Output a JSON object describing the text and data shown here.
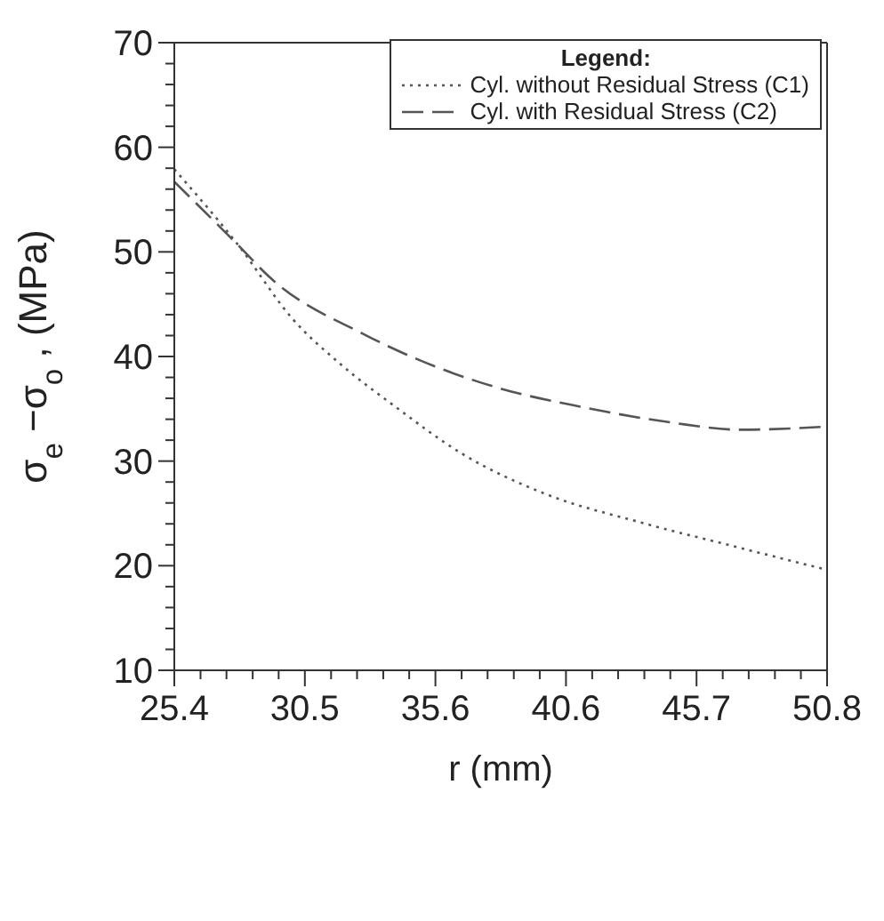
{
  "chart_data": {
    "type": "line",
    "xlabel": "r (mm)",
    "ylabel": "σ$_{e}$−σ$_{o}$ , (MPa)",
    "legend_title": "Legend:",
    "legend": "top right",
    "marker": "none",
    "xlim": [
      25.4,
      50.8
    ],
    "xticks": [
      25.4,
      {
        "value": 26.42,
        "label": null
      },
      {
        "value": 27.43,
        "label": null
      },
      {
        "value": 28.45,
        "label": null
      },
      {
        "value": 29.46,
        "label": null
      },
      {
        "value": 30.48,
        "label": "30.5"
      },
      {
        "value": 31.5,
        "label": null
      },
      {
        "value": 32.51,
        "label": null
      },
      {
        "value": 33.53,
        "label": null
      },
      {
        "value": 34.54,
        "label": null
      },
      {
        "value": 35.56,
        "label": "35.6"
      },
      {
        "value": 36.58,
        "label": null
      },
      {
        "value": 37.59,
        "label": null
      },
      {
        "value": 38.61,
        "label": null
      },
      {
        "value": 39.62,
        "label": null
      },
      {
        "value": 40.64,
        "label": "40.6"
      },
      {
        "value": 41.66,
        "label": null
      },
      {
        "value": 42.67,
        "label": null
      },
      {
        "value": 43.69,
        "label": null
      },
      {
        "value": 44.7,
        "label": null
      },
      {
        "value": 45.72,
        "label": "45.7"
      },
      {
        "value": 46.74,
        "label": null
      },
      {
        "value": 47.75,
        "label": null
      },
      {
        "value": 48.77,
        "label": null
      },
      {
        "value": 49.78,
        "label": null
      },
      50.8
    ],
    "ylim": [
      10,
      70
    ],
    "yticks": [
      10,
      {
        "value": 12,
        "label": null
      },
      {
        "value": 14,
        "label": null
      },
      {
        "value": 16,
        "label": null
      },
      {
        "value": 18,
        "label": null
      },
      20,
      {
        "value": 22,
        "label": null
      },
      {
        "value": 24,
        "label": null
      },
      {
        "value": 26,
        "label": null
      },
      {
        "value": 28,
        "label": null
      },
      30,
      {
        "value": 32,
        "label": null
      },
      {
        "value": 34,
        "label": null
      },
      {
        "value": 36,
        "label": null
      },
      {
        "value": 38,
        "label": null
      },
      40,
      {
        "value": 42,
        "label": null
      },
      {
        "value": 44,
        "label": null
      },
      {
        "value": 46,
        "label": null
      },
      {
        "value": 48,
        "label": null
      },
      50,
      {
        "value": 52,
        "label": null
      },
      {
        "value": 54,
        "label": null
      },
      {
        "value": 56,
        "label": null
      },
      {
        "value": 58,
        "label": null
      },
      60,
      {
        "value": 62,
        "label": null
      },
      {
        "value": 64,
        "label": null
      },
      {
        "value": 66,
        "label": null
      },
      {
        "value": 68,
        "label": null
      },
      70
    ],
    "series": [
      {
        "name": "Cyl. without Residual Stress (C1)",
        "color": "#555555",
        "line_style": "dotted",
        "x": [
          25.4,
          27.9,
          30.0,
          31.9,
          34.0,
          36.6,
          39.8,
          43.6,
          47.1,
          50.8
        ],
        "values": [
          57.9,
          50.6,
          43.6,
          39.2,
          35.2,
          30.7,
          26.9,
          24.1,
          21.9,
          19.6
        ]
      },
      {
        "name": "Cyl. with Residual Stress (C2)",
        "color": "#555555",
        "line_style": "dashed",
        "x": [
          25.4,
          27.9,
          29.1,
          32.8,
          34.7,
          38.0,
          41.2,
          44.7,
          47.4,
          50.8
        ],
        "values": [
          56.7,
          50.6,
          47.6,
          42.1,
          39.9,
          37.0,
          35.2,
          33.7,
          33.0,
          33.3
        ]
      }
    ]
  }
}
